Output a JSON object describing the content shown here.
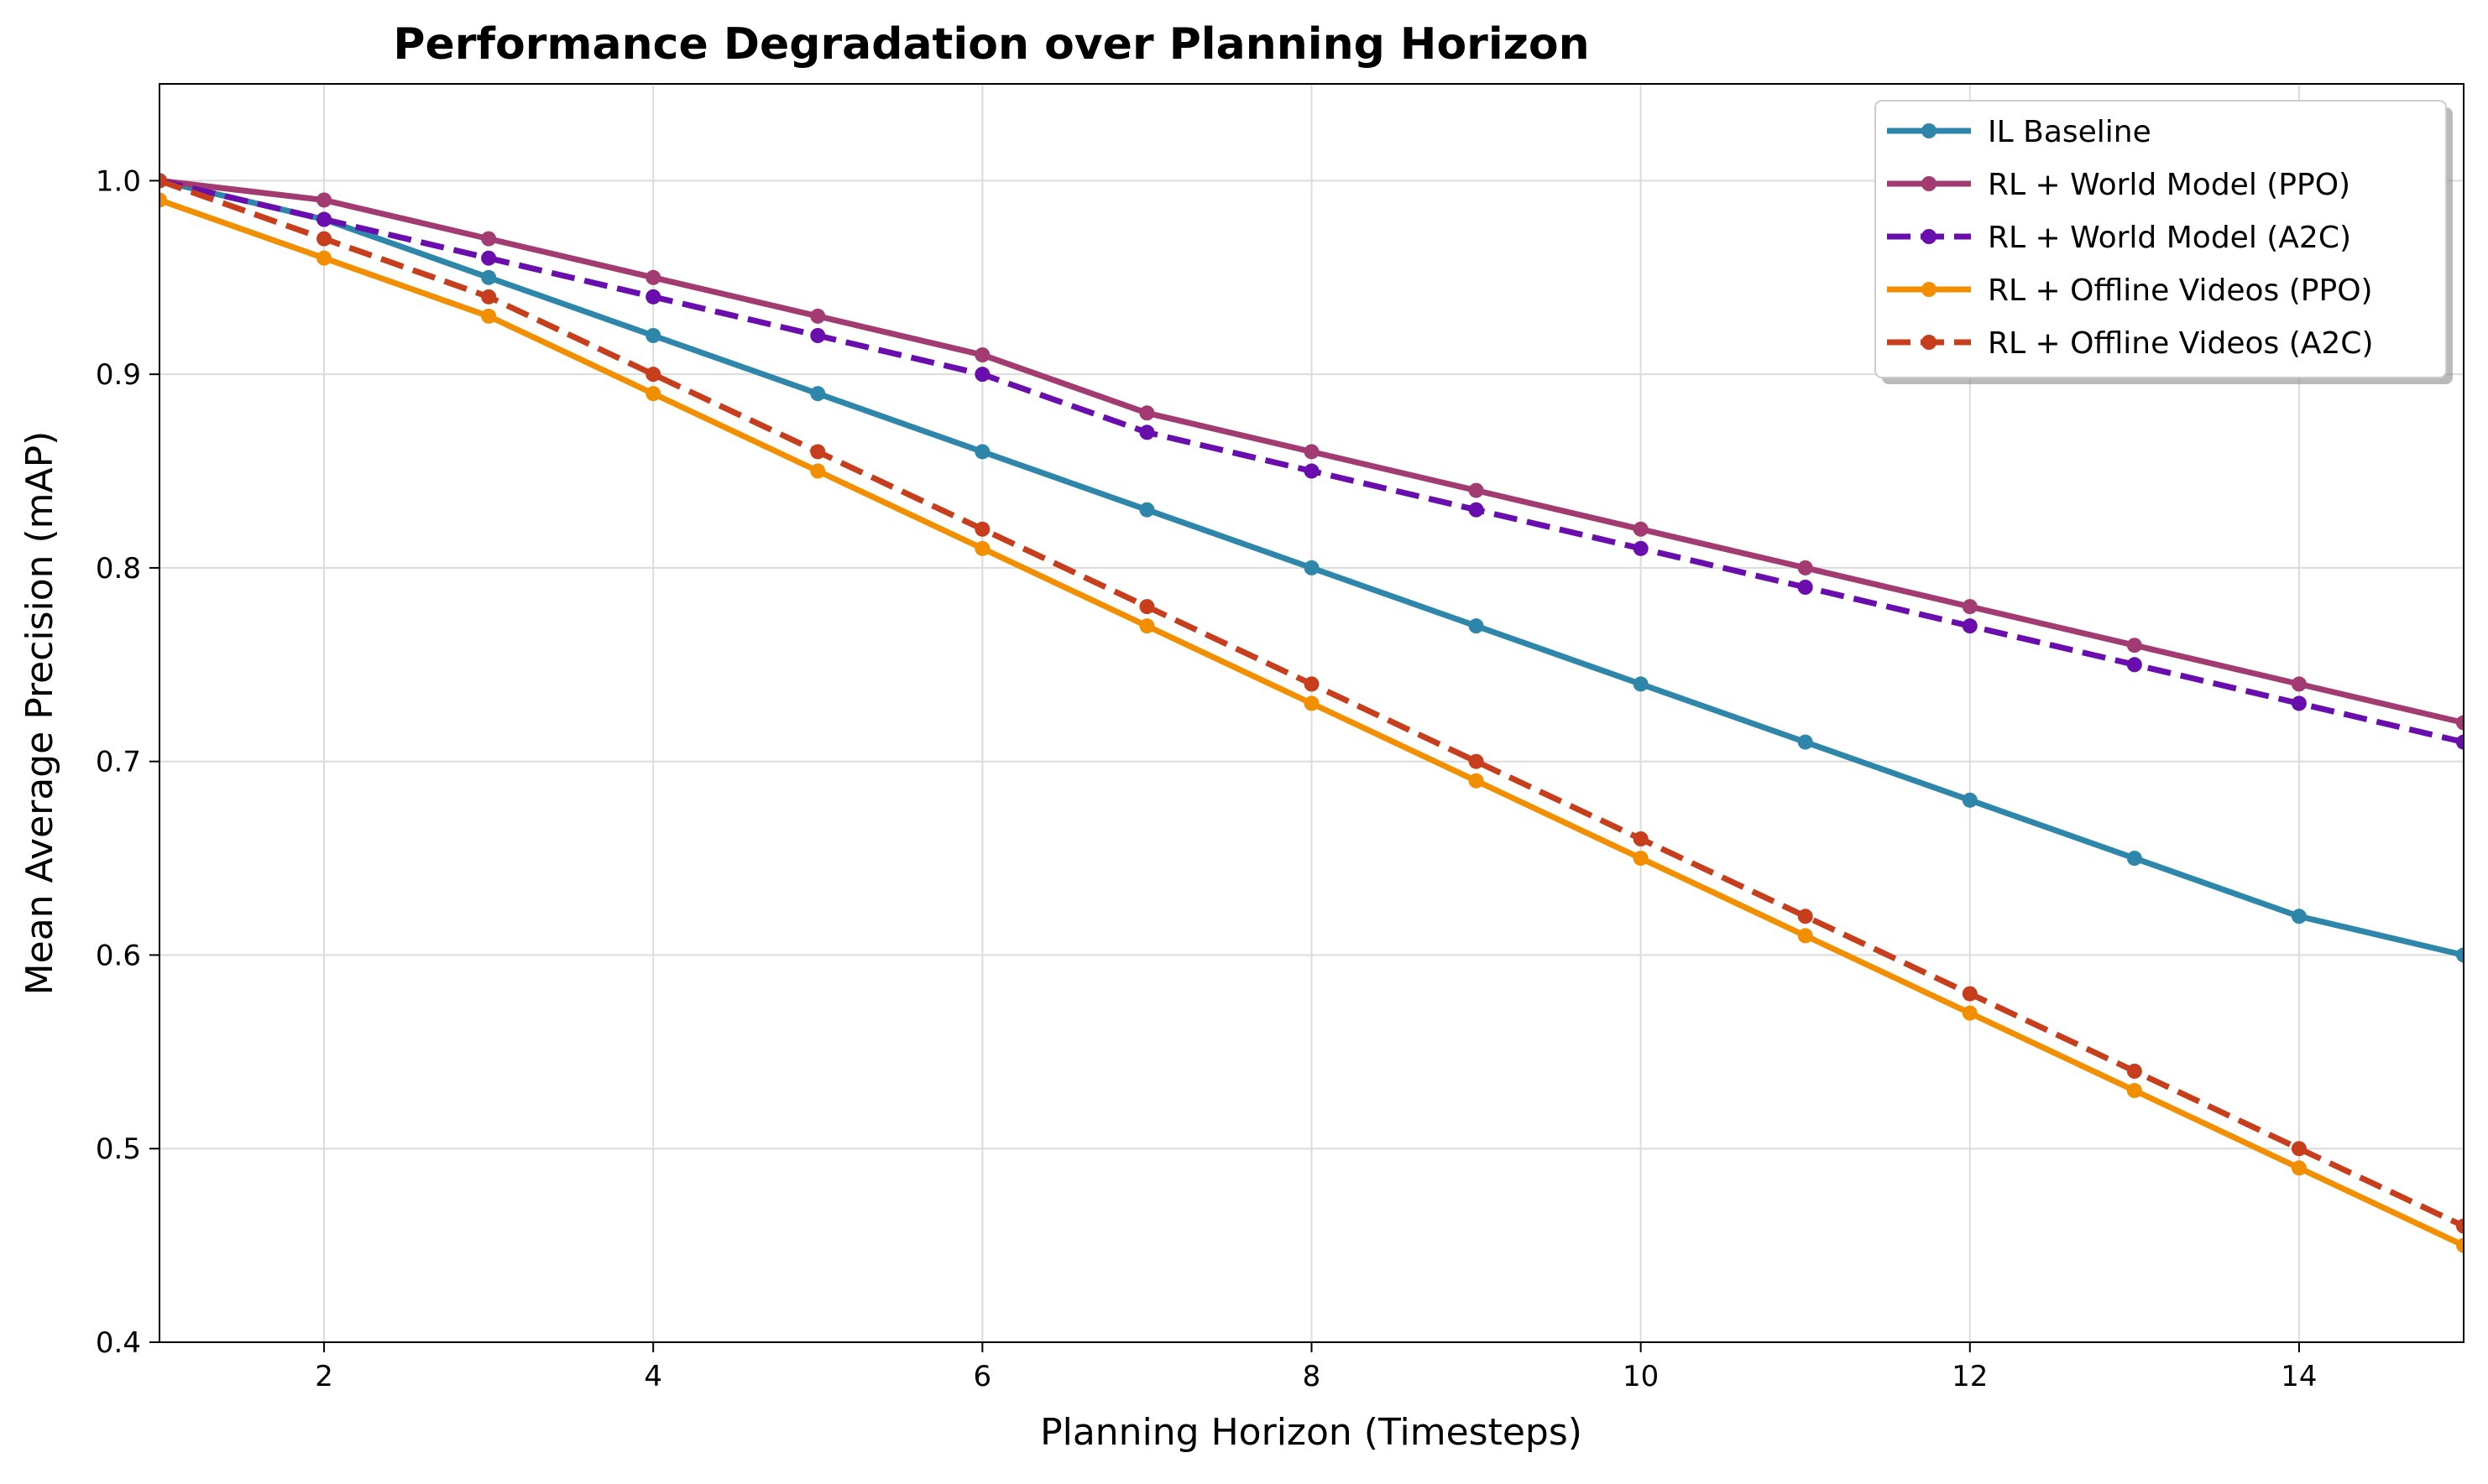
{
  "chart_data": {
    "type": "line",
    "title": "Performance Degradation over Planning Horizon",
    "xlabel": "Planning Horizon (Timesteps)",
    "ylabel": "Mean Average Precision (mAP)",
    "x": [
      1,
      2,
      3,
      4,
      5,
      6,
      7,
      8,
      9,
      10,
      11,
      12,
      13,
      14,
      15
    ],
    "xlim": [
      1,
      15
    ],
    "ylim": [
      0.4,
      1.05
    ],
    "xticks": [
      2,
      4,
      6,
      8,
      10,
      12,
      14
    ],
    "yticks": [
      0.4,
      0.5,
      0.6,
      0.7,
      0.8,
      0.9,
      1.0
    ],
    "grid": true,
    "legend_position": "top-right",
    "series": [
      {
        "name": "IL Baseline",
        "color": "#2e86ab",
        "dashed": false,
        "values": [
          1.0,
          0.98,
          0.95,
          0.92,
          0.89,
          0.86,
          0.83,
          0.8,
          0.77,
          0.74,
          0.71,
          0.68,
          0.65,
          0.62,
          0.6
        ]
      },
      {
        "name": "RL + World Model (PPO)",
        "color": "#a23b72",
        "dashed": false,
        "values": [
          1.0,
          0.99,
          0.97,
          0.95,
          0.93,
          0.91,
          0.88,
          0.86,
          0.84,
          0.82,
          0.8,
          0.78,
          0.76,
          0.74,
          0.72
        ]
      },
      {
        "name": "RL + World Model (A2C)",
        "color": "#6a0dad",
        "dashed": true,
        "values": [
          1.0,
          0.98,
          0.96,
          0.94,
          0.92,
          0.9,
          0.87,
          0.85,
          0.83,
          0.81,
          0.79,
          0.77,
          0.75,
          0.73,
          0.71
        ]
      },
      {
        "name": "RL + Offline Videos (PPO)",
        "color": "#f18f01",
        "dashed": false,
        "values": [
          0.99,
          0.96,
          0.93,
          0.89,
          0.85,
          0.81,
          0.77,
          0.73,
          0.69,
          0.65,
          0.61,
          0.57,
          0.53,
          0.49,
          0.45
        ]
      },
      {
        "name": "RL + Offline Videos (A2C)",
        "color": "#c73e1d",
        "dashed": true,
        "values": [
          1.0,
          0.97,
          0.94,
          0.9,
          0.86,
          0.82,
          0.78,
          0.74,
          0.7,
          0.66,
          0.62,
          0.58,
          0.54,
          0.5,
          0.46
        ]
      }
    ]
  }
}
